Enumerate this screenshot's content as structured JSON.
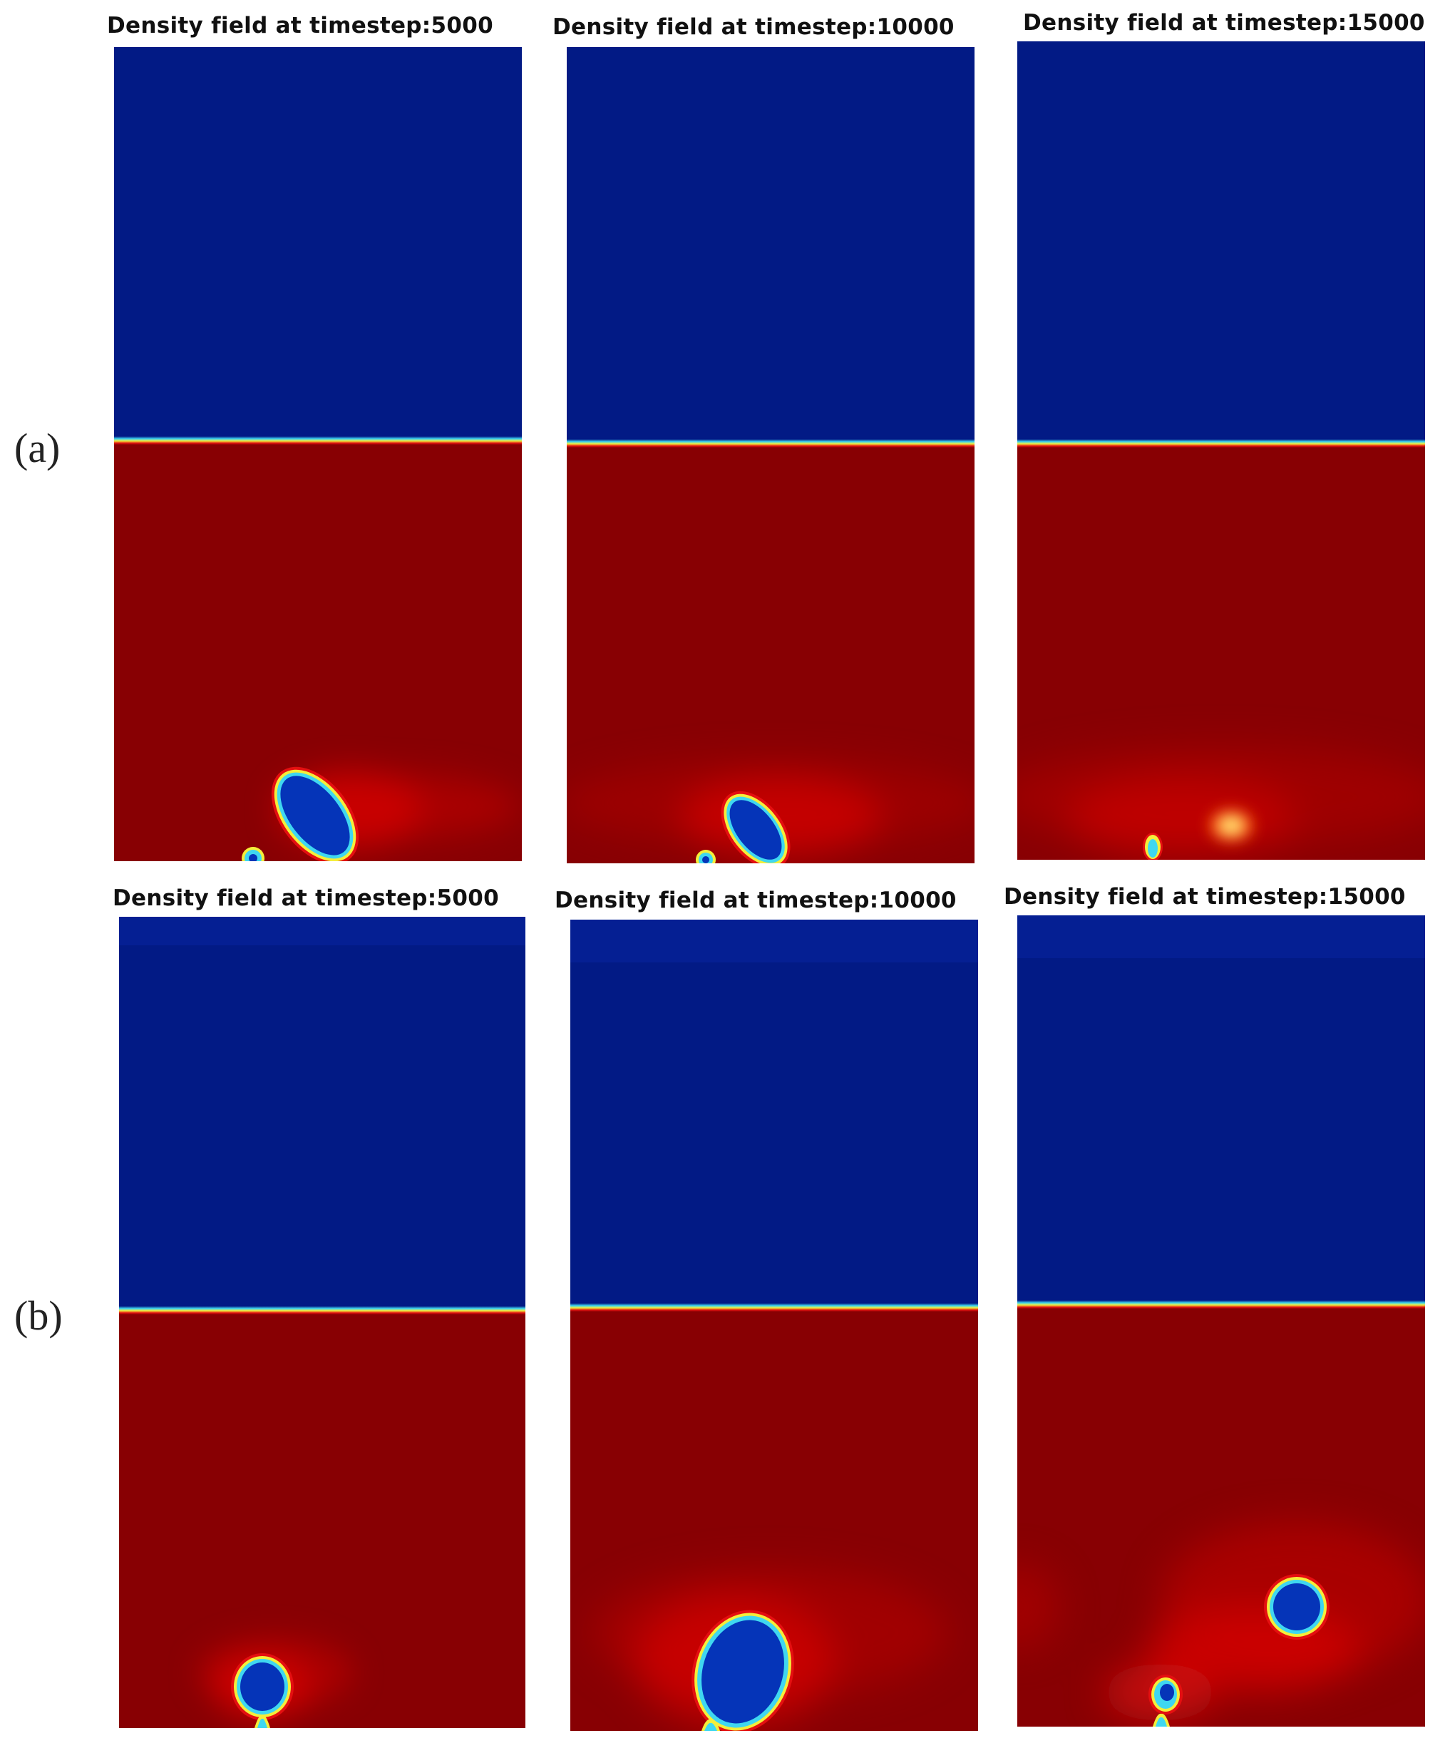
{
  "figure": {
    "rows": [
      {
        "label": "(a)",
        "panels": [
          {
            "title": "Density field at timestep:5000"
          },
          {
            "title": "Density field at timestep:10000"
          },
          {
            "title": "Density field at timestep:15000"
          }
        ]
      },
      {
        "label": "(b)",
        "panels": [
          {
            "title": "Density field at timestep:5000"
          },
          {
            "title": "Density field at timestep:10000"
          },
          {
            "title": "Density field at timestep:15000"
          }
        ]
      }
    ]
  },
  "colors": {
    "gas_phase": "#021a85",
    "liquid_phase": "#880003",
    "interface_cyan": "#3fd7f0",
    "interface_yellow": "#f4ee3a",
    "wake_red": "#e40f10"
  }
}
